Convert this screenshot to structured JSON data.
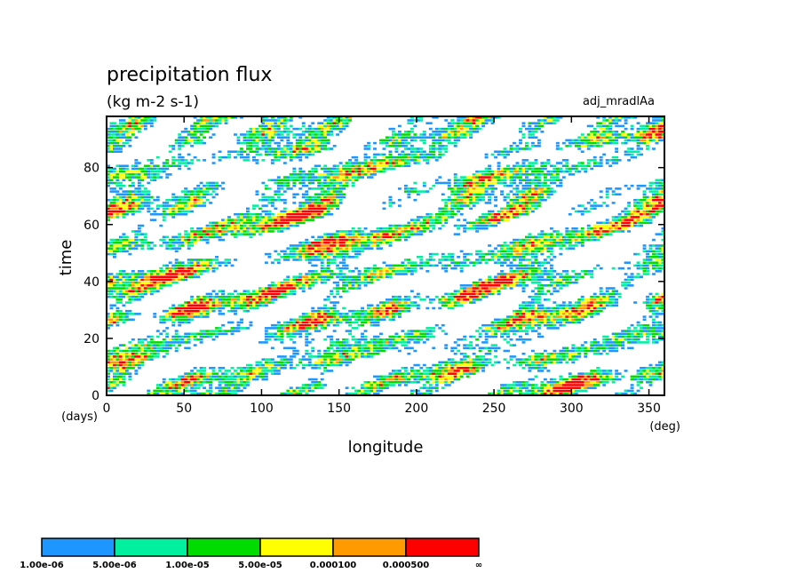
{
  "chart_data": {
    "type": "heatmap",
    "title": "precipitation flux",
    "subtitle": "(kg m-2 s-1)",
    "run_label": "adj_mradlAa",
    "xlabel": "longitude",
    "x_unit": "(deg)",
    "ylabel": "time",
    "y_unit": "(days)",
    "xlim": [
      0,
      360
    ],
    "ylim": [
      0,
      98
    ],
    "x_ticks": [
      0,
      50,
      100,
      150,
      200,
      250,
      300,
      350
    ],
    "y_ticks": [
      0,
      20,
      40,
      60,
      80
    ],
    "grid": false,
    "legend_position": "bottom",
    "colorbar": {
      "levels": [
        "1.00e-06",
        "5.00e-06",
        "1.00e-05",
        "5.00e-05",
        "0.000100",
        "0.000500",
        "∞"
      ],
      "colors": [
        "#1e96ff",
        "#00f0a0",
        "#00dc00",
        "#ffff00",
        "#ff9b00",
        "#ff0000"
      ]
    },
    "field_description": "Precipitation flux on a longitude–time plane; convective streaks propagating eastward with time, values mostly between 1e-06 and 5e-04 kg m-2 s-1, white where below 1e-06."
  }
}
